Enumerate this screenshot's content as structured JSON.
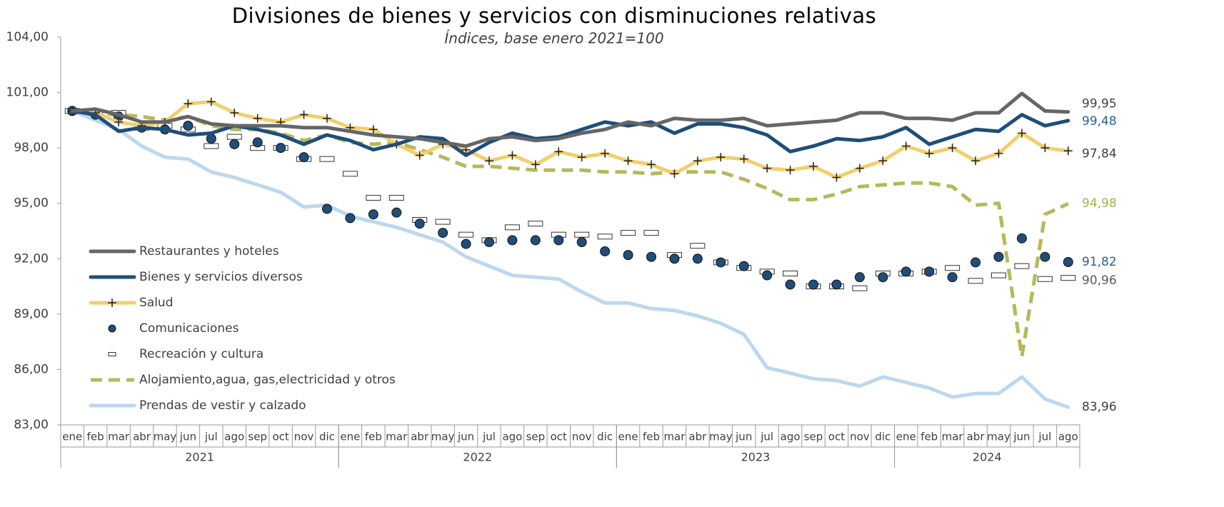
{
  "chart_data": {
    "type": "line",
    "title": "Divisiones de bienes y servicios con disminuciones relativas",
    "subtitle": "Índices, base enero 2021=100",
    "categories": [
      "ene",
      "feb",
      "mar",
      "abr",
      "may",
      "jun",
      "jul",
      "ago",
      "sep",
      "oct",
      "nov",
      "dic",
      "ene",
      "feb",
      "mar",
      "abr",
      "may",
      "jun",
      "jul",
      "ago",
      "sep",
      "oct",
      "nov",
      "dic",
      "ene",
      "feb",
      "mar",
      "abr",
      "may",
      "jun",
      "jul",
      "ago",
      "sep",
      "oct",
      "nov",
      "dic",
      "ene",
      "feb",
      "mar",
      "abr",
      "may",
      "jun",
      "jul",
      "ago"
    ],
    "years": [
      "2021",
      "2022",
      "2023",
      "2024"
    ],
    "ylim": [
      83,
      104
    ],
    "yticks": [
      {
        "value": 83,
        "label": "83,00"
      },
      {
        "value": 86,
        "label": "86,00"
      },
      {
        "value": 89,
        "label": "89,00"
      },
      {
        "value": 92,
        "label": "92,00"
      },
      {
        "value": 95,
        "label": "95,00"
      },
      {
        "value": 98,
        "label": "98,00"
      },
      {
        "value": 101,
        "label": "101,00"
      },
      {
        "value": 104,
        "label": "104,00"
      }
    ],
    "legend": "left",
    "series": [
      {
        "name": "Restaurantes y hoteles",
        "color": "#666666",
        "line": "solid",
        "marker": null,
        "label_color": "#404040",
        "values": [
          100,
          100.1,
          99.8,
          99.4,
          99.4,
          99.7,
          99.3,
          99.2,
          99.2,
          99.2,
          99.1,
          99.1,
          98.9,
          98.7,
          98.6,
          98.5,
          98.3,
          98.1,
          98.5,
          98.6,
          98.4,
          98.5,
          98.8,
          99.0,
          99.4,
          99.2,
          99.6,
          99.5,
          99.5,
          99.6,
          99.2,
          99.3,
          99.4,
          99.5,
          99.9,
          99.9,
          99.6,
          99.6,
          99.5,
          99.9,
          99.9,
          100.95,
          100.0,
          99.95
        ],
        "value_labels": [
          null,
          null,
          null,
          null,
          null,
          null,
          null,
          null,
          null,
          null,
          null,
          null,
          null,
          null,
          null,
          null,
          null,
          null,
          null,
          null,
          null,
          null,
          null,
          null,
          null,
          null,
          null,
          null,
          null,
          null,
          null,
          null,
          null,
          null,
          null,
          null,
          null,
          null,
          null,
          null,
          null,
          null,
          null,
          "99,95"
        ]
      },
      {
        "name": "Bienes y servicios diversos",
        "color": "#1f4e79",
        "line": "solid",
        "marker": null,
        "label_color": "#2e5e8e",
        "values": [
          100,
          99.8,
          98.9,
          99.1,
          99.0,
          98.7,
          98.8,
          99.2,
          99.0,
          98.7,
          98.2,
          98.7,
          98.4,
          97.9,
          98.2,
          98.6,
          98.5,
          97.6,
          98.3,
          98.8,
          98.5,
          98.6,
          99.0,
          99.4,
          99.2,
          99.4,
          98.8,
          99.3,
          99.3,
          99.1,
          98.7,
          97.8,
          98.1,
          98.5,
          98.4,
          98.6,
          99.1,
          98.2,
          98.6,
          99.0,
          98.9,
          99.8,
          99.2,
          99.48
        ],
        "value_labels": [
          null,
          null,
          null,
          null,
          null,
          null,
          null,
          null,
          null,
          null,
          null,
          null,
          null,
          null,
          null,
          null,
          null,
          null,
          null,
          null,
          null,
          null,
          null,
          null,
          null,
          null,
          null,
          null,
          null,
          null,
          null,
          null,
          null,
          null,
          null,
          null,
          null,
          null,
          null,
          null,
          null,
          null,
          null,
          "99,48"
        ]
      },
      {
        "name": "Salud",
        "color": "#f2cf6b",
        "line": "solid",
        "marker": "plus",
        "label_color": "#404040",
        "values": [
          100,
          99.9,
          99.4,
          99.2,
          99.4,
          100.4,
          100.5,
          99.9,
          99.6,
          99.4,
          99.8,
          99.6,
          99.1,
          99.0,
          98.2,
          97.6,
          98.2,
          97.9,
          97.3,
          97.6,
          97.1,
          97.8,
          97.5,
          97.7,
          97.3,
          97.1,
          96.6,
          97.3,
          97.5,
          97.4,
          96.9,
          96.8,
          97.0,
          96.4,
          96.9,
          97.3,
          98.1,
          97.7,
          98.0,
          97.3,
          97.7,
          98.8,
          98.0,
          97.84
        ],
        "value_labels": [
          null,
          null,
          null,
          null,
          null,
          null,
          null,
          null,
          null,
          null,
          null,
          null,
          null,
          null,
          null,
          null,
          null,
          null,
          null,
          null,
          null,
          null,
          null,
          null,
          null,
          null,
          null,
          null,
          null,
          null,
          null,
          null,
          null,
          null,
          null,
          null,
          null,
          null,
          null,
          null,
          null,
          null,
          null,
          "97,84"
        ]
      },
      {
        "name": "Comunicaciones",
        "color": "#1f4e79",
        "line": null,
        "marker": "circle",
        "label_color": "#2e5e8e",
        "values": [
          100,
          99.8,
          99.7,
          99.1,
          99.0,
          99.2,
          98.5,
          98.2,
          98.3,
          98.0,
          97.5,
          94.7,
          94.2,
          94.4,
          94.5,
          93.9,
          93.4,
          92.8,
          92.9,
          93.0,
          93.0,
          93.0,
          92.9,
          92.4,
          92.2,
          92.1,
          92.0,
          92.0,
          91.8,
          91.6,
          91.1,
          90.6,
          90.6,
          90.6,
          91.0,
          91.0,
          91.3,
          91.3,
          91.0,
          91.8,
          92.1,
          93.1,
          92.1,
          91.82
        ],
        "value_labels": [
          null,
          null,
          null,
          null,
          null,
          null,
          null,
          null,
          null,
          null,
          null,
          null,
          null,
          null,
          null,
          null,
          null,
          null,
          null,
          null,
          null,
          null,
          null,
          null,
          null,
          null,
          null,
          null,
          null,
          null,
          null,
          null,
          null,
          null,
          null,
          null,
          null,
          null,
          null,
          null,
          null,
          null,
          null,
          "91,82"
        ]
      },
      {
        "name": "Recreación y cultura",
        "color": "#ffffff",
        "line": null,
        "marker": "box",
        "label_color": "#595959",
        "values": [
          100,
          99.9,
          99.9,
          99.1,
          99.2,
          99.0,
          98.1,
          98.6,
          98.0,
          98.0,
          97.4,
          97.4,
          96.6,
          95.3,
          95.3,
          94.1,
          94.0,
          93.3,
          93.0,
          93.7,
          93.9,
          93.3,
          93.3,
          93.2,
          93.4,
          93.4,
          92.2,
          92.7,
          91.8,
          91.5,
          91.3,
          91.2,
          90.5,
          90.5,
          90.4,
          91.2,
          91.2,
          91.3,
          91.5,
          90.8,
          91.1,
          91.6,
          90.9,
          90.96
        ],
        "value_labels": [
          null,
          null,
          null,
          null,
          null,
          null,
          null,
          null,
          null,
          null,
          null,
          null,
          null,
          null,
          null,
          null,
          null,
          null,
          null,
          null,
          null,
          null,
          null,
          null,
          null,
          null,
          null,
          null,
          null,
          null,
          null,
          null,
          null,
          null,
          null,
          null,
          null,
          null,
          null,
          null,
          null,
          null,
          null,
          "90,96"
        ]
      },
      {
        "name": "Alojamiento,agua, gas,electricidad y otros",
        "color": "#b5b95a",
        "line": "dashed",
        "marker": null,
        "label_color": "#a9ad4f",
        "values": [
          100,
          99.9,
          99.8,
          99.7,
          99.5,
          99.7,
          99.2,
          99.0,
          99.0,
          98.8,
          98.4,
          98.7,
          98.3,
          98.2,
          98.3,
          97.9,
          97.5,
          97.0,
          97.0,
          96.9,
          96.8,
          96.8,
          96.8,
          96.7,
          96.7,
          96.6,
          96.7,
          96.7,
          96.7,
          96.3,
          95.8,
          95.2,
          95.2,
          95.5,
          95.9,
          96.0,
          96.1,
          96.1,
          95.9,
          94.9,
          95.0,
          86.7,
          94.4,
          94.98
        ],
        "value_labels": [
          null,
          null,
          null,
          null,
          null,
          null,
          null,
          null,
          null,
          null,
          null,
          null,
          null,
          null,
          null,
          null,
          null,
          null,
          null,
          null,
          null,
          null,
          null,
          null,
          null,
          null,
          null,
          null,
          null,
          null,
          null,
          null,
          null,
          null,
          null,
          null,
          null,
          null,
          null,
          null,
          null,
          null,
          null,
          "94,98"
        ]
      },
      {
        "name": "Prendas de vestir y calzado",
        "color": "#bdd7ee",
        "line": "solid",
        "marker": null,
        "label_color": "#404040",
        "values": [
          100,
          99.5,
          99.0,
          98.1,
          97.5,
          97.4,
          96.7,
          96.4,
          96.0,
          95.6,
          94.8,
          94.9,
          94.3,
          94.0,
          93.7,
          93.3,
          92.9,
          92.1,
          91.6,
          91.1,
          91.0,
          90.9,
          90.2,
          89.6,
          89.6,
          89.3,
          89.2,
          88.9,
          88.5,
          87.9,
          86.1,
          85.8,
          85.5,
          85.4,
          85.1,
          85.6,
          85.3,
          85.0,
          84.5,
          84.7,
          84.7,
          85.6,
          84.4,
          83.96
        ],
        "value_labels": [
          null,
          null,
          null,
          null,
          null,
          null,
          null,
          null,
          null,
          null,
          null,
          null,
          null,
          null,
          null,
          null,
          null,
          null,
          null,
          null,
          null,
          null,
          null,
          null,
          null,
          null,
          null,
          null,
          null,
          null,
          null,
          null,
          null,
          null,
          null,
          null,
          null,
          null,
          null,
          null,
          null,
          null,
          null,
          "83,96"
        ]
      }
    ]
  }
}
